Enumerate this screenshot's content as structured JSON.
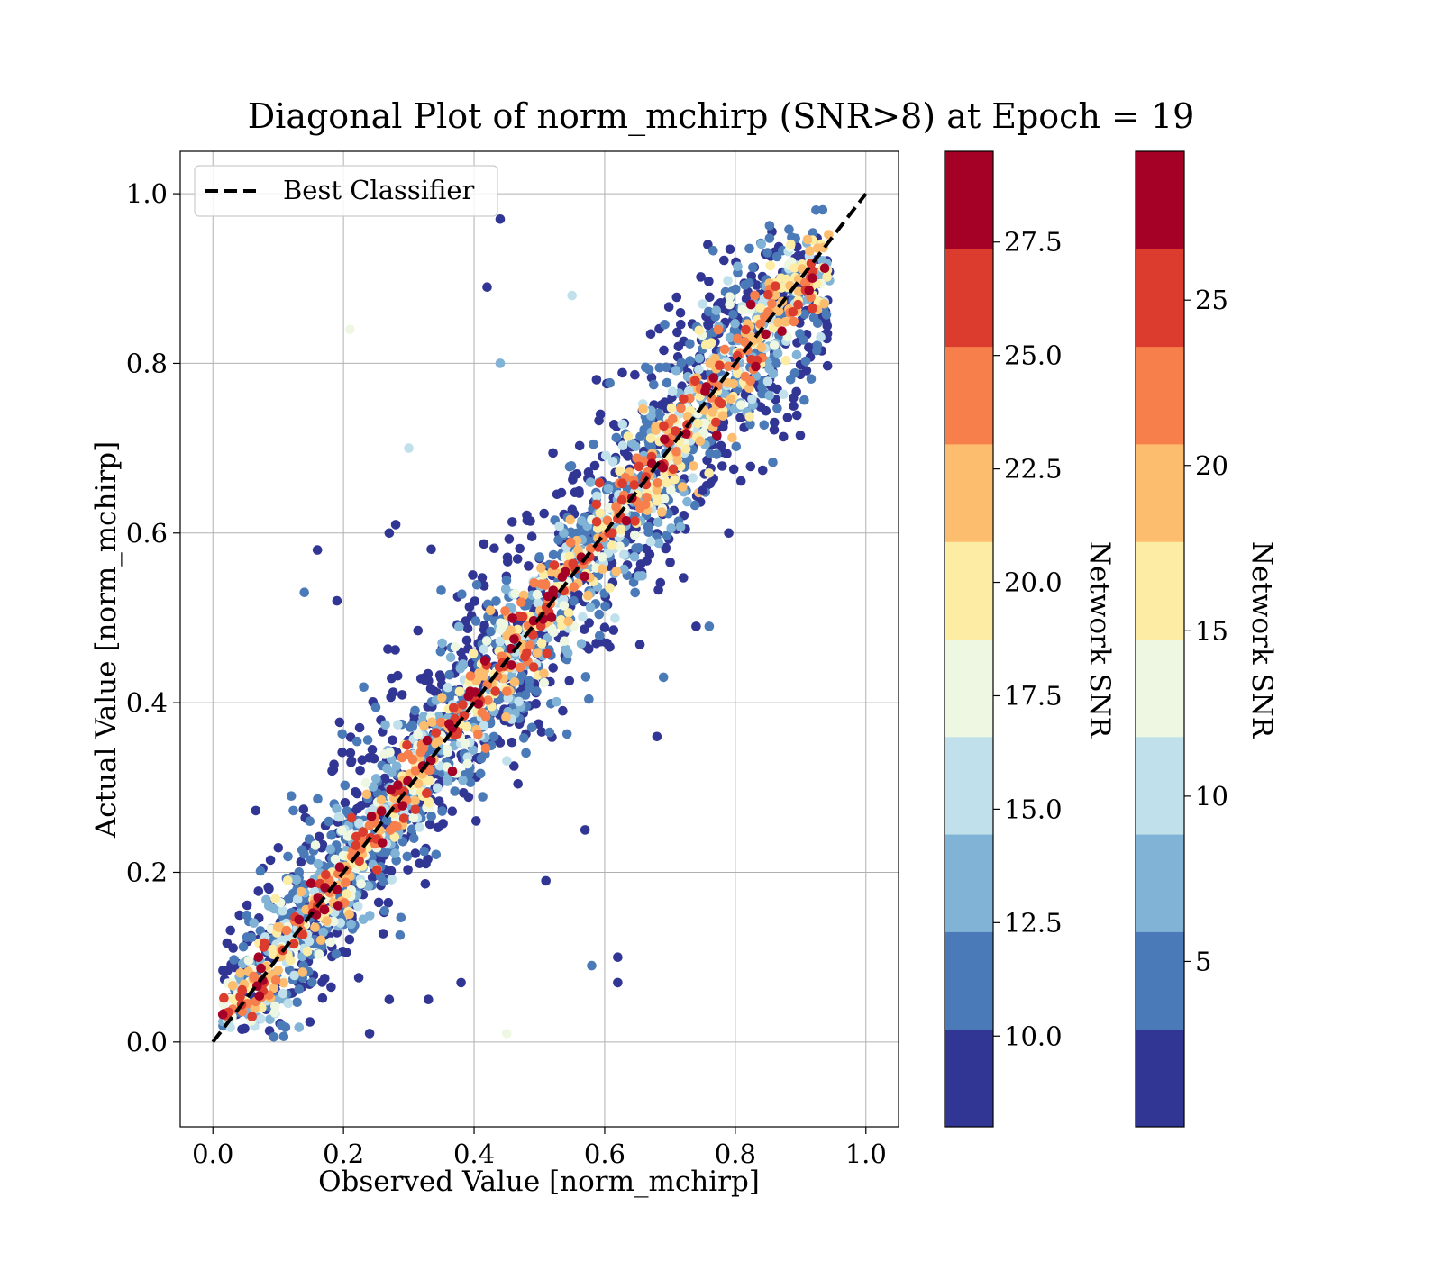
{
  "chart_data": {
    "type": "scatter",
    "title": "Diagonal Plot of norm_mchirp (SNR>8) at Epoch = 19",
    "xlabel": "Observed Value [norm_mchirp]",
    "ylabel": "Actual Value [norm_mchirp]",
    "xlim": [
      -0.05,
      1.05
    ],
    "ylim": [
      -0.1,
      1.05
    ],
    "xticks": [
      "0.0",
      "0.2",
      "0.4",
      "0.6",
      "0.8",
      "1.0"
    ],
    "yticks": [
      "0.0",
      "0.2",
      "0.4",
      "0.6",
      "0.8",
      "1.0"
    ],
    "grid": true,
    "legend": {
      "position": "upper-left",
      "entries": [
        "Best Classifier"
      ]
    },
    "reference_line": {
      "name": "Best Classifier",
      "x": [
        0.0,
        1.0
      ],
      "y": [
        0.0,
        1.0
      ],
      "style": "dashed",
      "color": "#000000"
    },
    "colormap": "RdYlBu_r",
    "colormap_colors": [
      "#313695",
      "#4a7ab7",
      "#80b3d6",
      "#c0e1ec",
      "#edf7e2",
      "#fdeca3",
      "#fdbd6f",
      "#f67f4c",
      "#dc3c2d",
      "#a50026"
    ],
    "point_samples": {
      "note_points": "representative sample; points colored by Network SNR",
      "points": [
        [
          0.27,
          0.6,
          8.5
        ],
        [
          0.28,
          0.61,
          9
        ],
        [
          0.44,
          0.97,
          8.5
        ],
        [
          0.42,
          0.89,
          8.5
        ],
        [
          0.21,
          0.84,
          17.5
        ],
        [
          0.3,
          0.7,
          15
        ],
        [
          0.44,
          0.8,
          14
        ],
        [
          0.16,
          0.58,
          8.5
        ],
        [
          0.14,
          0.53,
          12
        ],
        [
          0.19,
          0.52,
          8.5
        ],
        [
          0.62,
          0.07,
          8.5
        ],
        [
          0.62,
          0.1,
          8.5
        ],
        [
          0.58,
          0.09,
          12
        ],
        [
          0.51,
          0.19,
          9
        ],
        [
          0.57,
          0.25,
          8.5
        ],
        [
          0.75,
          0.65,
          8.5
        ],
        [
          0.79,
          0.6,
          8.5
        ],
        [
          0.69,
          0.43,
          12
        ],
        [
          0.68,
          0.36,
          8.5
        ],
        [
          0.74,
          0.49,
          8.5
        ],
        [
          0.76,
          0.49,
          12
        ],
        [
          0.55,
          0.88,
          15
        ],
        [
          0.07,
          0.1,
          29
        ],
        [
          0.06,
          0.03,
          27
        ],
        [
          0.12,
          0.29,
          12
        ],
        [
          0.27,
          0.05,
          8.5
        ],
        [
          0.24,
          0.01,
          8.5
        ],
        [
          0.33,
          0.05,
          8.5
        ],
        [
          0.45,
          0.01,
          18
        ],
        [
          0.38,
          0.07,
          8.5
        ]
      ]
    },
    "colorbars": [
      {
        "label": "Network SNR",
        "ticks": [
          "10.0",
          "12.5",
          "15.0",
          "17.5",
          "20.0",
          "22.5",
          "25.0",
          "27.5"
        ],
        "tick_values": [
          10,
          12.5,
          15,
          17.5,
          20,
          22.5,
          25,
          27.5
        ],
        "range": [
          8,
          29.5
        ]
      },
      {
        "label": "Network SNR",
        "ticks": [
          "5",
          "10",
          "15",
          "20",
          "25"
        ],
        "tick_values": [
          5,
          10,
          15,
          20,
          25
        ],
        "range": [
          0,
          29.5
        ]
      }
    ]
  }
}
